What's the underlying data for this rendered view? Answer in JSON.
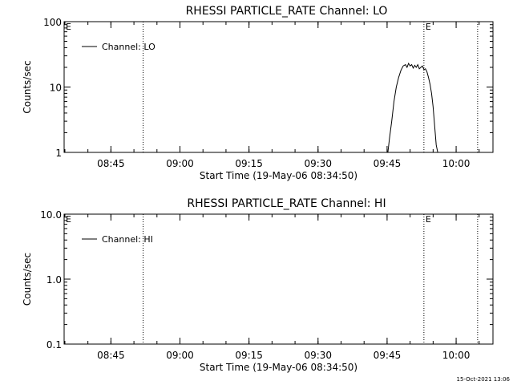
{
  "chart_data": [
    {
      "type": "line",
      "title": "RHESSI PARTICLE_RATE Channel: LO",
      "ylabel": "Counts/sec",
      "xlabel": "Start Time (19-May-06 08:34:50)",
      "y_scale": "log",
      "ylim": [
        1,
        100
      ],
      "y_ticks": [
        "1",
        "10",
        "100"
      ],
      "xlim": [
        "08:34:50",
        "10:08:00"
      ],
      "x_ticks": [
        "08:45",
        "09:00",
        "09:15",
        "09:30",
        "09:45",
        "10:00"
      ],
      "legend": {
        "label": "Channel: LO",
        "placement": "top-left"
      },
      "markers": [
        {
          "time": "08:52:00",
          "label": ""
        },
        {
          "time": "09:53:00",
          "label": "E"
        },
        {
          "time": "10:04:40",
          "label": ""
        }
      ],
      "edge_labels": {
        "left": "E"
      },
      "series": [
        {
          "name": "Channel: LO",
          "x": [
            "09:45:10",
            "09:45:30",
            "09:46:00",
            "09:46:30",
            "09:47:00",
            "09:47:30",
            "09:48:00",
            "09:48:30",
            "09:49:00",
            "09:49:20",
            "09:49:40",
            "09:50:00",
            "09:50:20",
            "09:50:40",
            "09:51:00",
            "09:51:20",
            "09:51:40",
            "09:52:00",
            "09:52:20",
            "09:52:40",
            "09:53:00",
            "09:53:20",
            "09:53:40",
            "09:54:00",
            "09:54:20",
            "09:54:40",
            "09:55:00",
            "09:55:20",
            "09:55:40",
            "09:56:00",
            "09:56:20"
          ],
          "y": [
            1.0,
            1.6,
            3.0,
            6.0,
            10.0,
            14.0,
            18.0,
            21.0,
            22.0,
            20.0,
            23.0,
            21.0,
            22.0,
            19.5,
            21.5,
            20.0,
            22.0,
            19.0,
            20.0,
            21.0,
            18.5,
            19.0,
            17.0,
            14.0,
            11.0,
            8.0,
            5.0,
            2.5,
            1.3,
            1.0,
            1.0
          ]
        }
      ]
    },
    {
      "type": "line",
      "title": "RHESSI PARTICLE_RATE Channel: HI",
      "ylabel": "Counts/sec",
      "xlabel": "Start Time (19-May-06 08:34:50)",
      "y_scale": "log",
      "ylim": [
        0.1,
        10
      ],
      "y_ticks": [
        "0.1",
        "1.0",
        "10.0"
      ],
      "xlim": [
        "08:34:50",
        "10:08:00"
      ],
      "x_ticks": [
        "08:45",
        "09:00",
        "09:15",
        "09:30",
        "09:45",
        "10:00"
      ],
      "legend": {
        "label": "Channel: HI",
        "placement": "top-left"
      },
      "markers": [
        {
          "time": "08:52:00",
          "label": ""
        },
        {
          "time": "09:53:00",
          "label": "E"
        },
        {
          "time": "10:04:40",
          "label": ""
        }
      ],
      "edge_labels": {
        "left": "E"
      },
      "series": [
        {
          "name": "Channel: HI",
          "x": [],
          "y": []
        }
      ]
    }
  ],
  "footer": {
    "timestamp": "15-Oct-2021 13:06"
  }
}
